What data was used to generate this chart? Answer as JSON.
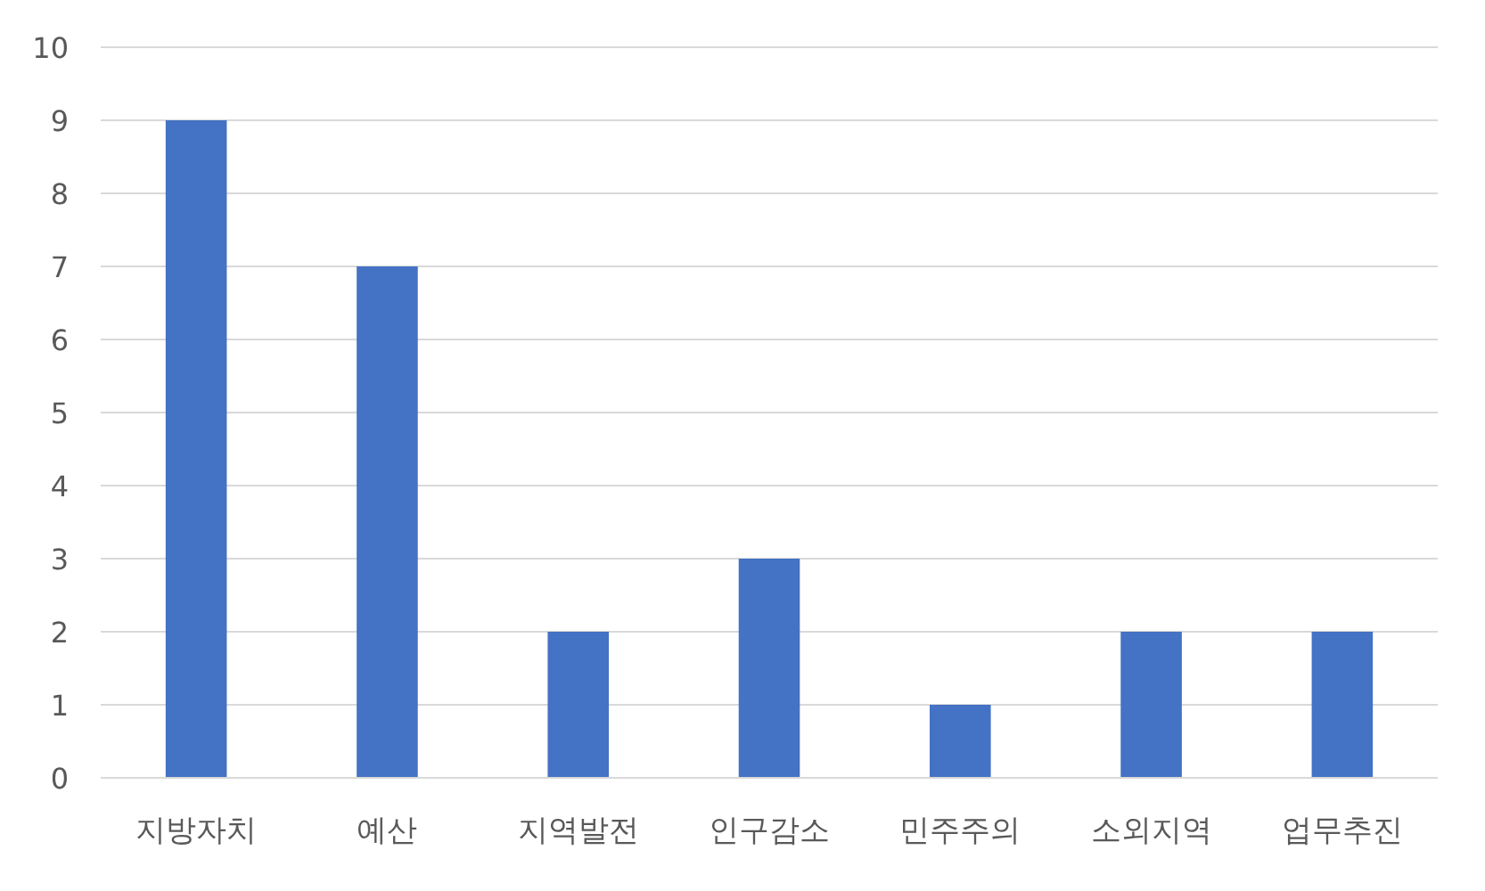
{
  "chart_data": {
    "type": "bar",
    "categories": [
      "지방자치",
      "예산",
      "지역발전",
      "인구감소",
      "민주주의",
      "소외지역",
      "업무추진"
    ],
    "values": [
      9,
      7,
      2,
      3,
      1,
      2,
      2
    ],
    "color": "#4472c4",
    "ylim": [
      0,
      10
    ],
    "yticks": [
      0,
      1,
      2,
      3,
      4,
      5,
      6,
      7,
      8,
      9,
      10
    ],
    "grid": "y"
  }
}
